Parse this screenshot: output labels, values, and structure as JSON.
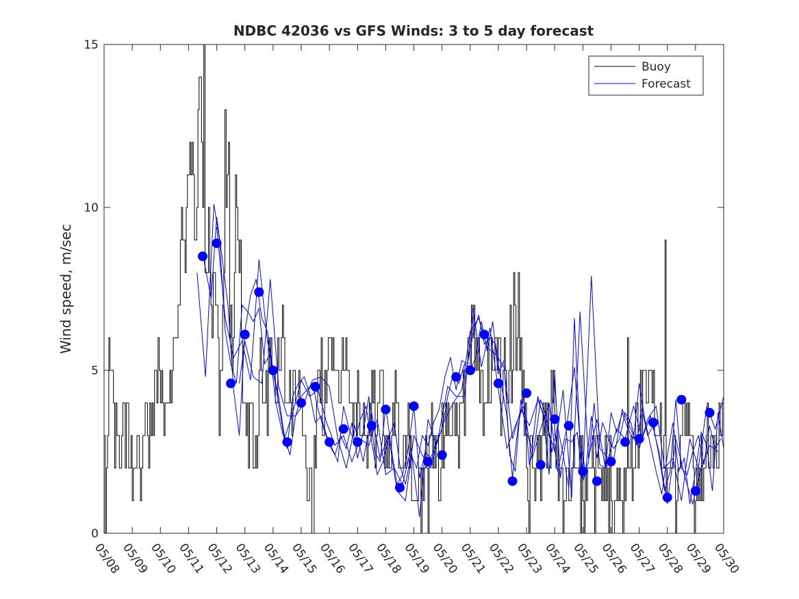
{
  "chart_data": {
    "type": "line",
    "title": "NDBC 42036 vs GFS Winds: 3 to 5 day forecast",
    "xlabel": "",
    "ylabel": "Wind speed, m/sec",
    "x_ticks": [
      "05/08",
      "05/09",
      "05/10",
      "05/11",
      "05/12",
      "05/13",
      "05/14",
      "05/15",
      "05/16",
      "05/17",
      "05/18",
      "05/19",
      "05/20",
      "05/21",
      "05/22",
      "05/23",
      "05/24",
      "05/25",
      "05/26",
      "05/27",
      "05/28",
      "05/29",
      "05/30"
    ],
    "y_ticks": [
      0,
      5,
      10,
      15
    ],
    "xlim": [
      0,
      22
    ],
    "ylim": [
      0,
      15
    ],
    "legend": {
      "position": "top-right",
      "entries": [
        {
          "name": "Buoy",
          "color": "#000000"
        },
        {
          "name": "Forecast",
          "color": "#0000ff"
        }
      ]
    },
    "colors": {
      "buoy": "#000000",
      "forecast": "#0000ff",
      "markers": "#0000ff"
    },
    "buoy_anchors": [
      [
        0.0,
        2
      ],
      [
        0.05,
        1
      ],
      [
        0.15,
        5
      ],
      [
        0.3,
        4
      ],
      [
        0.45,
        2
      ],
      [
        0.6,
        3
      ],
      [
        0.8,
        4
      ],
      [
        1.0,
        2
      ],
      [
        1.2,
        3
      ],
      [
        1.35,
        1
      ],
      [
        1.5,
        4
      ],
      [
        1.7,
        3
      ],
      [
        1.9,
        5
      ],
      [
        2.0,
        5
      ],
      [
        2.1,
        4
      ],
      [
        2.25,
        3
      ],
      [
        2.4,
        5
      ],
      [
        2.5,
        6
      ],
      [
        2.7,
        8
      ],
      [
        2.8,
        10
      ],
      [
        2.9,
        9
      ],
      [
        3.0,
        11
      ],
      [
        3.1,
        12
      ],
      [
        3.2,
        9
      ],
      [
        3.3,
        11
      ],
      [
        3.45,
        14
      ],
      [
        3.55,
        7
      ],
      [
        3.7,
        10
      ],
      [
        3.8,
        6
      ],
      [
        3.9,
        9
      ],
      [
        4.0,
        7
      ],
      [
        4.1,
        4
      ],
      [
        4.2,
        6
      ],
      [
        4.3,
        12
      ],
      [
        4.45,
        7
      ],
      [
        4.6,
        6
      ],
      [
        4.7,
        11
      ],
      [
        4.8,
        9
      ],
      [
        4.95,
        4
      ],
      [
        5.1,
        3
      ],
      [
        5.25,
        4
      ],
      [
        5.4,
        3
      ],
      [
        5.6,
        5
      ],
      [
        5.75,
        4
      ],
      [
        5.9,
        6
      ],
      [
        6.0,
        4
      ],
      [
        6.1,
        5
      ],
      [
        6.3,
        6
      ],
      [
        6.45,
        5
      ],
      [
        6.6,
        4
      ],
      [
        6.8,
        5
      ],
      [
        7.0,
        3
      ],
      [
        7.2,
        2
      ],
      [
        7.35,
        1
      ],
      [
        7.5,
        3
      ],
      [
        7.65,
        5
      ],
      [
        7.8,
        4
      ],
      [
        8.0,
        6
      ],
      [
        8.2,
        5
      ],
      [
        8.35,
        4
      ],
      [
        8.5,
        6
      ],
      [
        8.7,
        5
      ],
      [
        8.9,
        3
      ],
      [
        9.1,
        4
      ],
      [
        9.3,
        3
      ],
      [
        9.5,
        4
      ],
      [
        9.65,
        3
      ],
      [
        9.8,
        5
      ],
      [
        10.0,
        2
      ],
      [
        10.2,
        3
      ],
      [
        10.4,
        4
      ],
      [
        10.6,
        2
      ],
      [
        10.8,
        3
      ],
      [
        10.95,
        1
      ],
      [
        11.1,
        2
      ],
      [
        11.3,
        1
      ],
      [
        11.5,
        2
      ],
      [
        11.7,
        3
      ],
      [
        11.9,
        2
      ],
      [
        12.1,
        3
      ],
      [
        12.3,
        4
      ],
      [
        12.5,
        3
      ],
      [
        12.7,
        4
      ],
      [
        12.9,
        5
      ],
      [
        13.1,
        6
      ],
      [
        13.3,
        5
      ],
      [
        13.5,
        4
      ],
      [
        13.7,
        5
      ],
      [
        13.9,
        6
      ],
      [
        14.1,
        4
      ],
      [
        14.3,
        5
      ],
      [
        14.5,
        6
      ],
      [
        14.7,
        7
      ],
      [
        14.9,
        4
      ],
      [
        15.0,
        2
      ],
      [
        15.1,
        3
      ],
      [
        15.3,
        1
      ],
      [
        15.5,
        2
      ],
      [
        15.7,
        3
      ],
      [
        15.9,
        4
      ],
      [
        16.1,
        2
      ],
      [
        16.3,
        1
      ],
      [
        16.5,
        2
      ],
      [
        16.7,
        3
      ],
      [
        16.9,
        2
      ],
      [
        17.1,
        1
      ],
      [
        17.3,
        2
      ],
      [
        17.5,
        3
      ],
      [
        17.7,
        1
      ],
      [
        17.9,
        2
      ],
      [
        18.1,
        1
      ],
      [
        18.3,
        2
      ],
      [
        18.5,
        1
      ],
      [
        18.7,
        2
      ],
      [
        18.9,
        3
      ],
      [
        19.1,
        4
      ],
      [
        19.3,
        5
      ],
      [
        19.5,
        4
      ],
      [
        19.7,
        3
      ],
      [
        19.9,
        2
      ],
      [
        20.1,
        3
      ],
      [
        20.3,
        2
      ],
      [
        20.5,
        3
      ],
      [
        20.7,
        4
      ],
      [
        20.85,
        2
      ],
      [
        21.0,
        1
      ],
      [
        21.2,
        2
      ],
      [
        21.4,
        3
      ],
      [
        21.6,
        2
      ],
      [
        21.8,
        3
      ],
      [
        22.0,
        3
      ]
    ],
    "buoy_spikes": [
      [
        3.55,
        15
      ],
      [
        4.4,
        12
      ],
      [
        4.65,
        11
      ],
      [
        14.55,
        8
      ],
      [
        19.9,
        9
      ],
      [
        18.6,
        6
      ],
      [
        5.3,
        2
      ],
      [
        7.4,
        0
      ],
      [
        11.5,
        0
      ],
      [
        15.1,
        0
      ],
      [
        16.3,
        0
      ],
      [
        16.9,
        0
      ],
      [
        17.4,
        0
      ],
      [
        17.9,
        0
      ],
      [
        18.4,
        0
      ],
      [
        20.3,
        0
      ],
      [
        0.05,
        0
      ]
    ],
    "forecast_markers": [
      [
        3.5,
        8.5
      ],
      [
        4.0,
        8.9
      ],
      [
        4.5,
        4.6
      ],
      [
        5.0,
        6.1
      ],
      [
        5.5,
        7.4
      ],
      [
        6.0,
        5.0
      ],
      [
        6.5,
        2.8
      ],
      [
        7.0,
        4.0
      ],
      [
        7.5,
        4.5
      ],
      [
        8.0,
        2.8
      ],
      [
        8.5,
        3.2
      ],
      [
        9.0,
        2.8
      ],
      [
        9.5,
        3.3
      ],
      [
        10.0,
        3.8
      ],
      [
        10.5,
        1.4
      ],
      [
        11.0,
        3.9
      ],
      [
        11.5,
        2.2
      ],
      [
        12.0,
        2.4
      ],
      [
        12.5,
        4.8
      ],
      [
        13.0,
        5.0
      ],
      [
        13.5,
        6.1
      ],
      [
        14.0,
        4.6
      ],
      [
        14.5,
        1.6
      ],
      [
        15.0,
        4.3
      ],
      [
        15.5,
        2.1
      ],
      [
        16.0,
        3.5
      ],
      [
        16.5,
        3.3
      ],
      [
        17.0,
        1.9
      ],
      [
        17.5,
        1.6
      ],
      [
        18.0,
        2.2
      ],
      [
        18.5,
        2.8
      ],
      [
        19.0,
        2.9
      ],
      [
        19.5,
        3.4
      ],
      [
        20.0,
        1.1
      ],
      [
        20.5,
        4.1
      ],
      [
        21.0,
        1.3
      ],
      [
        21.5,
        3.7
      ]
    ],
    "forecast_series": [
      {
        "x": [
          3.3,
          3.6,
          3.9,
          4.1,
          4.3,
          4.5,
          4.7,
          4.9,
          5.1,
          5.3,
          5.5,
          5.7,
          5.9,
          6.1,
          6.3,
          6.5,
          6.7,
          6.9,
          7.1,
          7.3,
          7.5,
          7.7,
          7.9,
          8.1,
          8.3,
          8.5,
          8.7,
          8.9,
          9.1,
          9.3,
          9.5,
          9.7,
          9.9,
          10.1,
          10.3,
          10.5,
          10.7,
          10.9,
          11.1,
          11.3,
          11.5,
          11.7,
          11.9,
          12.1,
          12.3,
          12.5,
          12.7,
          12.9,
          13.1,
          13.3,
          13.5,
          13.7,
          13.9,
          14.1,
          14.3,
          14.5,
          14.7,
          14.9,
          15.1,
          15.3,
          15.5,
          15.7,
          15.9,
          16.1,
          16.3,
          16.5,
          16.7,
          16.9,
          17.1,
          17.3,
          17.5,
          17.7,
          17.9,
          18.1,
          18.3,
          18.5,
          18.7,
          18.9,
          19.1,
          19.3,
          19.5,
          19.7,
          19.9,
          20.1,
          20.3,
          20.5,
          20.7,
          20.9,
          21.1,
          21.3,
          21.5,
          21.7,
          21.9
        ],
        "y": [
          8.0,
          4.8,
          10.1,
          9.0,
          6.2,
          5.2,
          4.6,
          7.0,
          6.8,
          6.5,
          6.9,
          5.2,
          5.5,
          4.0,
          3.2,
          2.6,
          4.2,
          4.6,
          4.8,
          4.3,
          3.4,
          3.6,
          3.0,
          2.6,
          2.2,
          3.9,
          3.2,
          2.8,
          3.5,
          3.9,
          2.8,
          1.8,
          2.2,
          2.9,
          3.4,
          2.1,
          1.5,
          2.4,
          2.0,
          3.0,
          2.7,
          3.4,
          3.8,
          4.8,
          5.4,
          4.4,
          5.3,
          5.2,
          6.1,
          6.7,
          5.8,
          6.0,
          5.8,
          4.6,
          3.6,
          1.7,
          3.3,
          4.2,
          2.1,
          2.8,
          4.1,
          3.6,
          2.5,
          3.3,
          2.4,
          1.4,
          6.6,
          2.8,
          1.9,
          3.6,
          2.3,
          3.4,
          2.9,
          2.6,
          2.9,
          3.7,
          3.4,
          2.7,
          3.8,
          3.0,
          3.3,
          2.4,
          1.3,
          1.9,
          4.1,
          2.0,
          1.8,
          2.5,
          3.0,
          2.1,
          3.3,
          2.6,
          2.9
        ]
      },
      {
        "x": [
          3.5,
          3.8,
          4.0,
          4.2,
          4.4,
          4.6,
          4.8,
          5.0,
          5.2,
          5.4,
          5.6,
          5.8,
          6.0,
          6.2,
          6.4,
          6.6,
          6.8,
          7.0,
          7.2,
          7.4,
          7.6,
          7.8,
          8.0,
          8.2,
          8.4,
          8.6,
          8.8,
          9.0,
          9.2,
          9.4,
          9.6,
          9.8,
          10.0,
          10.2,
          10.4,
          10.6,
          10.8,
          11.0,
          11.2,
          11.4,
          11.6,
          11.8,
          12.0,
          12.2,
          12.4,
          12.6,
          12.8,
          13.0,
          13.2,
          13.4,
          13.6,
          13.8,
          14.0,
          14.2,
          14.4,
          14.6,
          14.8,
          15.0,
          15.2,
          15.4,
          15.6,
          15.8,
          16.0,
          16.2,
          16.4,
          16.6,
          16.8,
          17.0,
          17.2,
          17.4,
          17.6,
          17.8,
          18.0,
          18.2,
          18.4,
          18.6,
          18.8,
          19.0,
          19.2,
          19.4,
          19.6,
          19.8,
          20.0,
          20.2,
          20.4,
          20.6,
          20.8,
          21.0,
          21.2,
          21.4,
          21.6,
          21.8,
          22.0
        ],
        "y": [
          8.6,
          7.2,
          9.7,
          8.4,
          7.0,
          4.4,
          3.0,
          6.2,
          7.3,
          7.8,
          6.6,
          6.2,
          5.0,
          4.2,
          3.0,
          2.4,
          3.6,
          4.2,
          4.4,
          4.6,
          3.8,
          3.2,
          2.7,
          2.4,
          3.0,
          2.6,
          3.4,
          2.3,
          3.1,
          4.2,
          2.5,
          2.2,
          3.9,
          2.6,
          1.5,
          1.8,
          2.6,
          3.9,
          1.7,
          2.5,
          2.3,
          2.8,
          3.2,
          4.2,
          4.9,
          4.6,
          5.2,
          5.0,
          5.4,
          6.5,
          5.6,
          6.5,
          4.9,
          5.3,
          2.4,
          1.9,
          4.1,
          3.1,
          2.6,
          4.2,
          3.6,
          1.8,
          4.9,
          1.7,
          2.9,
          2.8,
          3.1,
          1.6,
          2.2,
          4.0,
          2.1,
          2.0,
          3.7,
          3.1,
          3.7,
          3.2,
          2.9,
          4.6,
          3.5,
          2.7,
          1.9,
          1.2,
          2.4,
          3.4,
          1.9,
          2.3,
          0.9,
          1.9,
          3.1,
          2.7,
          1.3,
          3.7,
          2.6
        ]
      },
      {
        "x": [
          4.0,
          4.3,
          4.6,
          4.9,
          5.2,
          5.5,
          5.8,
          6.1,
          6.4,
          6.7,
          7.0,
          7.3,
          7.6,
          7.9,
          8.2,
          8.5,
          8.8,
          9.1,
          9.4,
          9.7,
          10.0,
          10.3,
          10.6,
          10.9,
          11.2,
          11.5,
          11.8,
          12.1,
          12.4,
          12.7,
          13.0,
          13.3,
          13.6,
          13.9,
          14.2,
          14.5,
          14.8,
          15.1,
          15.4,
          15.7,
          16.0,
          16.3,
          16.6,
          16.9,
          17.2,
          17.5,
          17.8,
          18.1,
          18.4,
          18.7,
          19.0,
          19.3,
          19.6,
          19.9,
          20.2,
          20.5,
          20.8,
          21.1,
          21.4,
          21.7,
          22.0
        ],
        "y": [
          9.4,
          6.6,
          5.4,
          5.9,
          4.7,
          8.4,
          5.9,
          4.5,
          2.9,
          3.7,
          4.7,
          4.2,
          4.4,
          3.4,
          2.7,
          3.0,
          2.2,
          2.9,
          2.7,
          3.5,
          1.8,
          2.0,
          1.5,
          2.6,
          0.5,
          3.5,
          2.7,
          3.5,
          4.0,
          4.4,
          6.2,
          6.6,
          5.7,
          5.5,
          5.1,
          2.9,
          3.8,
          3.3,
          4.1,
          3.4,
          2.5,
          4.4,
          1.1,
          6.8,
          2.3,
          3.5,
          2.0,
          2.3,
          3.8,
          3.2,
          2.6,
          3.5,
          3.9,
          2.0,
          2.3,
          1.0,
          2.9,
          2.0,
          3.9,
          3.2,
          4.2
        ]
      },
      {
        "x": [
          4.8,
          5.0,
          5.3,
          5.6,
          5.9,
          6.2,
          6.5,
          6.8,
          7.1,
          7.4,
          7.7,
          8.0,
          8.3,
          8.6,
          8.9,
          9.2,
          9.5,
          9.8,
          10.1,
          10.4,
          10.7,
          11.0,
          11.3,
          11.6,
          11.9,
          12.2,
          12.5,
          12.8,
          13.1,
          13.4,
          13.7,
          14.0,
          14.3,
          14.6,
          14.9,
          15.2,
          15.5,
          15.8,
          16.1,
          16.4,
          16.7,
          17.0,
          17.3,
          17.6,
          17.9,
          18.2,
          18.5,
          18.8,
          19.1,
          19.4,
          19.7,
          20.0,
          20.3,
          20.6,
          20.9,
          21.2,
          21.5,
          21.8
        ],
        "y": [
          4.6,
          5.9,
          4.8,
          4.6,
          7.8,
          4.5,
          3.6,
          3.6,
          4.0,
          4.7,
          4.8,
          4.5,
          2.9,
          2.0,
          3.3,
          2.2,
          3.7,
          2.3,
          3.0,
          1.3,
          1.0,
          3.0,
          2.4,
          2.0,
          3.1,
          4.5,
          4.2,
          4.2,
          6.9,
          5.1,
          6.3,
          4.4,
          2.6,
          3.3,
          3.9,
          2.3,
          3.2,
          4.0,
          1.9,
          3.1,
          5.1,
          1.7,
          7.9,
          2.6,
          2.3,
          3.2,
          2.9,
          3.9,
          2.9,
          3.6,
          2.5,
          0.9,
          2.9,
          1.8,
          0.9,
          2.0,
          2.7,
          2.5
        ]
      }
    ]
  }
}
